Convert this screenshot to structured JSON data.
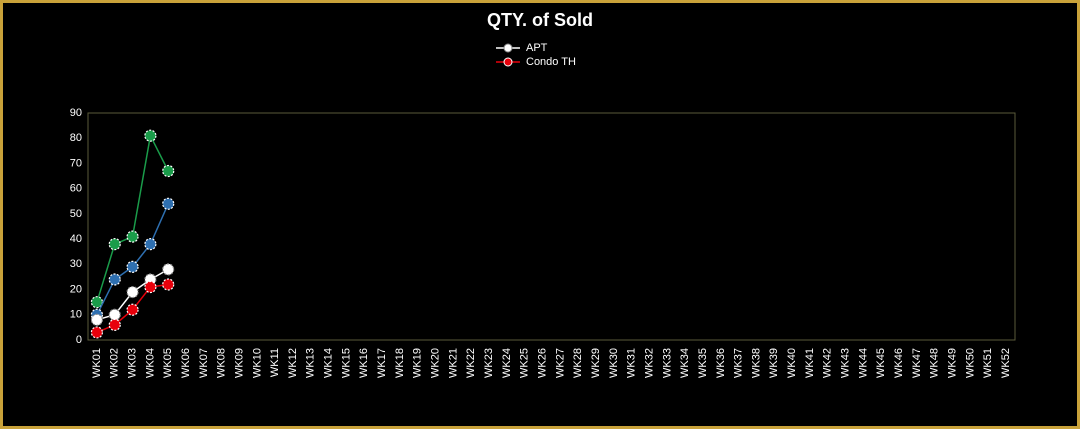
{
  "chart_data": {
    "type": "line",
    "title": "QTY. of Sold",
    "categories": [
      "WK01",
      "WK02",
      "WK03",
      "WK04",
      "WK05",
      "WK06",
      "WK07",
      "WK08",
      "WK09",
      "WK10",
      "WK11",
      "WK12",
      "WK13",
      "WK14",
      "WK15",
      "WK16",
      "WK17",
      "WK18",
      "WK19",
      "WK20",
      "WK21",
      "WK22",
      "WK23",
      "WK24",
      "WK25",
      "WK26",
      "WK27",
      "WK28",
      "WK29",
      "WK30",
      "WK31",
      "WK32",
      "WK33",
      "WK34",
      "WK35",
      "WK36",
      "WK37",
      "WK38",
      "WK39",
      "WK40",
      "WK41",
      "WK42",
      "WK43",
      "WK44",
      "WK45",
      "WK46",
      "WK47",
      "WK48",
      "WK49",
      "WK50",
      "WK51",
      "WK52"
    ],
    "series": [
      {
        "color": "#1a9c4a",
        "values": [
          15,
          38,
          41,
          81,
          67,
          null,
          null,
          null,
          null,
          null,
          null,
          null,
          null,
          null,
          null,
          null,
          null,
          null,
          null,
          null,
          null,
          null,
          null,
          null,
          null,
          null,
          null,
          null,
          null,
          null,
          null,
          null,
          null,
          null,
          null,
          null,
          null,
          null,
          null,
          null,
          null,
          null,
          null,
          null,
          null,
          null,
          null,
          null,
          null,
          null,
          null,
          null
        ]
      },
      {
        "color": "#2e6fb0",
        "values": [
          10,
          24,
          29,
          38,
          54,
          null,
          null,
          null,
          null,
          null,
          null,
          null,
          null,
          null,
          null,
          null,
          null,
          null,
          null,
          null,
          null,
          null,
          null,
          null,
          null,
          null,
          null,
          null,
          null,
          null,
          null,
          null,
          null,
          null,
          null,
          null,
          null,
          null,
          null,
          null,
          null,
          null,
          null,
          null,
          null,
          null,
          null,
          null,
          null,
          null,
          null,
          null
        ]
      },
      {
        "name": "APT",
        "color": "#ffffff",
        "values": [
          8,
          10,
          19,
          24,
          28,
          null,
          null,
          null,
          null,
          null,
          null,
          null,
          null,
          null,
          null,
          null,
          null,
          null,
          null,
          null,
          null,
          null,
          null,
          null,
          null,
          null,
          null,
          null,
          null,
          null,
          null,
          null,
          null,
          null,
          null,
          null,
          null,
          null,
          null,
          null,
          null,
          null,
          null,
          null,
          null,
          null,
          null,
          null,
          null,
          null,
          null,
          null
        ]
      },
      {
        "name": "Condo TH",
        "color": "#e8000b",
        "values": [
          3,
          6,
          12,
          21,
          22,
          null,
          null,
          null,
          null,
          null,
          null,
          null,
          null,
          null,
          null,
          null,
          null,
          null,
          null,
          null,
          null,
          null,
          null,
          null,
          null,
          null,
          null,
          null,
          null,
          null,
          null,
          null,
          null,
          null,
          null,
          null,
          null,
          null,
          null,
          null,
          null,
          null,
          null,
          null,
          null,
          null,
          null,
          null,
          null,
          null,
          null,
          null
        ]
      }
    ],
    "ylim": [
      0,
      90
    ],
    "yticks": [
      0,
      10,
      20,
      30,
      40,
      50,
      60,
      70,
      80,
      90
    ],
    "grid": false
  }
}
